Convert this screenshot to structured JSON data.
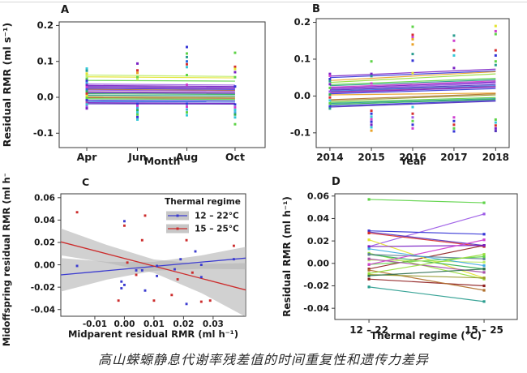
{
  "caption": "高山蝾螈静息代谢率残差值的时间重复性和遗传力差异",
  "palette": [
    "#7a1fc4",
    "#9b59e6",
    "#5533bb",
    "#3434d6",
    "#2b6be0",
    "#3fa9e0",
    "#35c8d8",
    "#2a9d8f",
    "#2fae54",
    "#5ed348",
    "#96dd3c",
    "#c0ee6a",
    "#e3e32e",
    "#eaa226",
    "#b06f2c",
    "#98982c",
    "#d62f2f",
    "#8f1f1f",
    "#cf3ecf",
    "#a84fa8",
    "#5f7f93",
    "#2f6f4f"
  ],
  "colors": {
    "axis": "#3a3a3a",
    "band": "#b5b5b5",
    "legend_sample_bg": "#c7c7c7",
    "blue": "#3b3bd0",
    "red": "#cc2b2b"
  },
  "chart_data": [
    {
      "id": "A",
      "label": "A",
      "type": "trajectories",
      "x_categories": [
        "Apr",
        "Jun",
        "Aug",
        "Oct"
      ],
      "xlabel": "Month",
      "ylabel": "Residual RMR (ml s⁻¹)",
      "ytick_values": [
        0.2,
        0.1,
        0.0,
        -0.1
      ],
      "ytick_labels": [
        "0.2",
        "0.1",
        "0.0",
        "-0.1"
      ],
      "ylim": [
        -0.14,
        0.21
      ],
      "endpoint_markers": false,
      "lines": [
        [
          0.062,
          0.058,
          11
        ],
        [
          0.057,
          0.054,
          12
        ],
        [
          0.047,
          0.045,
          9
        ],
        [
          0.037,
          0.034,
          1
        ],
        [
          0.033,
          0.03,
          0
        ],
        [
          0.03,
          0.027,
          2
        ],
        [
          0.027,
          0.024,
          18
        ],
        [
          0.025,
          0.022,
          3
        ],
        [
          0.022,
          0.019,
          14
        ],
        [
          0.02,
          0.017,
          1
        ],
        [
          0.016,
          0.013,
          19
        ],
        [
          0.013,
          0.011,
          2
        ],
        [
          0.01,
          0.008,
          8
        ],
        [
          0.006,
          0.004,
          7
        ],
        [
          0.002,
          0.0,
          15
        ],
        [
          -0.001,
          -0.003,
          14
        ],
        [
          -0.004,
          -0.006,
          9
        ],
        [
          -0.008,
          -0.01,
          3
        ],
        [
          -0.012,
          -0.013,
          4
        ],
        [
          -0.015,
          -0.017,
          0
        ],
        [
          -0.018,
          -0.019,
          2
        ]
      ],
      "points": [
        [
          0,
          0.08,
          6
        ],
        [
          0,
          0.074,
          7
        ],
        [
          0,
          0.066,
          12
        ],
        [
          0,
          0.06,
          11
        ],
        [
          0,
          0.052,
          9
        ],
        [
          0,
          0.046,
          3
        ],
        [
          0,
          0.04,
          5
        ],
        [
          0,
          0.034,
          0
        ],
        [
          0,
          0.028,
          18
        ],
        [
          0,
          0.022,
          4
        ],
        [
          0,
          0.016,
          8
        ],
        [
          0,
          0.01,
          16
        ],
        [
          0,
          0.004,
          12
        ],
        [
          0,
          -0.002,
          9
        ],
        [
          0,
          -0.008,
          3
        ],
        [
          0,
          -0.014,
          19
        ],
        [
          0,
          -0.02,
          6
        ],
        [
          0,
          -0.026,
          1
        ],
        [
          0,
          -0.031,
          0
        ],
        [
          1,
          0.094,
          0
        ],
        [
          1,
          0.075,
          16
        ],
        [
          1,
          0.068,
          13
        ],
        [
          1,
          0.056,
          9
        ],
        [
          1,
          0.05,
          11
        ],
        [
          1,
          -0.018,
          3
        ],
        [
          1,
          -0.024,
          18
        ],
        [
          1,
          -0.03,
          5
        ],
        [
          1,
          -0.036,
          8
        ],
        [
          1,
          -0.042,
          6
        ],
        [
          1,
          -0.048,
          9
        ],
        [
          1,
          -0.055,
          3
        ],
        [
          1,
          -0.062,
          6
        ],
        [
          2,
          0.14,
          3
        ],
        [
          2,
          0.122,
          9
        ],
        [
          2,
          0.112,
          7
        ],
        [
          2,
          0.1,
          4
        ],
        [
          2,
          0.092,
          16
        ],
        [
          2,
          0.084,
          6
        ],
        [
          2,
          0.062,
          9
        ],
        [
          2,
          0.035,
          18
        ],
        [
          2,
          -0.018,
          3
        ],
        [
          2,
          -0.026,
          18
        ],
        [
          2,
          -0.034,
          5
        ],
        [
          2,
          -0.042,
          9
        ],
        [
          2,
          -0.05,
          6
        ],
        [
          3,
          0.124,
          9
        ],
        [
          3,
          0.085,
          16
        ],
        [
          3,
          0.079,
          12
        ],
        [
          3,
          0.07,
          0
        ],
        [
          3,
          0.056,
          9
        ],
        [
          3,
          0.03,
          3
        ],
        [
          3,
          -0.02,
          3
        ],
        [
          3,
          -0.028,
          18
        ],
        [
          3,
          -0.035,
          6
        ],
        [
          3,
          -0.042,
          5
        ],
        [
          3,
          -0.048,
          8
        ],
        [
          3,
          -0.056,
          6
        ],
        [
          3,
          -0.075,
          9
        ]
      ]
    },
    {
      "id": "B",
      "label": "B",
      "type": "trajectories",
      "x_categories": [
        "2014",
        "2015",
        "2016",
        "2017",
        "2018"
      ],
      "xlabel": "Year",
      "ylabel": "",
      "ytick_values": [
        0.2,
        0.1,
        0.0,
        -0.1
      ],
      "ytick_labels": [
        "0.2",
        "0.1",
        "0.0",
        "-0.1"
      ],
      "ylim": [
        -0.14,
        0.21
      ],
      "endpoint_markers": false,
      "lines": [
        [
          0.054,
          0.073,
          0
        ],
        [
          0.05,
          0.068,
          3
        ],
        [
          0.042,
          0.066,
          13
        ],
        [
          0.037,
          0.06,
          10
        ],
        [
          0.031,
          0.048,
          9
        ],
        [
          0.028,
          0.044,
          7
        ],
        [
          0.024,
          0.041,
          18
        ],
        [
          0.021,
          0.038,
          0
        ],
        [
          0.018,
          0.035,
          1
        ],
        [
          0.016,
          0.031,
          2
        ],
        [
          0.013,
          0.028,
          4
        ],
        [
          0.011,
          0.026,
          19
        ],
        [
          0.009,
          0.024,
          0
        ],
        [
          0.006,
          0.02,
          3
        ],
        [
          0.003,
          0.008,
          13
        ],
        [
          -0.01,
          0.006,
          14
        ],
        [
          -0.013,
          0.003,
          15
        ],
        [
          -0.017,
          -0.004,
          9
        ],
        [
          -0.02,
          -0.007,
          7
        ],
        [
          -0.023,
          -0.009,
          8
        ],
        [
          -0.027,
          -0.012,
          3
        ],
        [
          -0.03,
          -0.014,
          2
        ]
      ],
      "points": [
        [
          0,
          0.06,
          0
        ],
        [
          0,
          0.055,
          18
        ],
        [
          0,
          0.046,
          3
        ],
        [
          0,
          0.04,
          7
        ],
        [
          0,
          0.032,
          0
        ],
        [
          0,
          0.022,
          9
        ],
        [
          0,
          0.012,
          1
        ],
        [
          0,
          0.004,
          8
        ],
        [
          0,
          -0.004,
          16
        ],
        [
          0,
          -0.012,
          6
        ],
        [
          0,
          -0.02,
          9
        ],
        [
          0,
          -0.028,
          3
        ],
        [
          0,
          -0.034,
          7
        ],
        [
          1,
          0.094,
          9
        ],
        [
          1,
          0.06,
          0
        ],
        [
          1,
          0.054,
          7
        ],
        [
          1,
          0.034,
          18
        ],
        [
          1,
          -0.04,
          16
        ],
        [
          1,
          -0.048,
          3
        ],
        [
          1,
          -0.056,
          6
        ],
        [
          1,
          -0.063,
          18
        ],
        [
          1,
          -0.07,
          3
        ],
        [
          1,
          -0.078,
          0
        ],
        [
          1,
          -0.085,
          6
        ],
        [
          1,
          -0.094,
          13
        ],
        [
          2,
          0.188,
          9
        ],
        [
          2,
          0.166,
          16
        ],
        [
          2,
          0.16,
          18
        ],
        [
          2,
          0.154,
          13
        ],
        [
          2,
          0.14,
          13
        ],
        [
          2,
          0.114,
          7
        ],
        [
          2,
          0.096,
          3
        ],
        [
          2,
          0.062,
          12
        ],
        [
          2,
          -0.03,
          6
        ],
        [
          2,
          -0.048,
          16
        ],
        [
          2,
          -0.058,
          1
        ],
        [
          2,
          -0.068,
          9
        ],
        [
          2,
          -0.078,
          3
        ],
        [
          2,
          -0.088,
          18
        ],
        [
          3,
          0.164,
          7
        ],
        [
          3,
          0.15,
          18
        ],
        [
          3,
          0.124,
          16
        ],
        [
          3,
          0.11,
          6
        ],
        [
          3,
          0.076,
          0
        ],
        [
          3,
          -0.058,
          18
        ],
        [
          3,
          -0.068,
          3
        ],
        [
          3,
          -0.078,
          16
        ],
        [
          3,
          -0.088,
          9
        ],
        [
          3,
          -0.096,
          3
        ],
        [
          4,
          0.19,
          12
        ],
        [
          4,
          0.176,
          18
        ],
        [
          4,
          0.168,
          9
        ],
        [
          4,
          0.124,
          16
        ],
        [
          4,
          0.11,
          3
        ],
        [
          4,
          0.094,
          9
        ],
        [
          4,
          0.084,
          7
        ],
        [
          4,
          -0.064,
          9
        ],
        [
          4,
          -0.072,
          6
        ],
        [
          4,
          -0.08,
          16
        ],
        [
          4,
          -0.088,
          0
        ],
        [
          4,
          -0.095,
          2
        ]
      ]
    },
    {
      "id": "C",
      "label": "C",
      "type": "scatter_regression",
      "xlabel": "Midparent residual RMR (ml h⁻¹)",
      "ylabel": "Midoffspring residual RMR (ml h⁻¹)",
      "xtick_values": [
        -0.01,
        0.0,
        0.01,
        0.02,
        0.03
      ],
      "xtick_labels": [
        "-0.01",
        "0.00",
        "0.01",
        "0.02",
        "0.03"
      ],
      "xlim": [
        -0.0215,
        0.041
      ],
      "ytick_values": [
        0.06,
        0.04,
        0.02,
        0.0,
        -0.02,
        -0.04
      ],
      "ytick_labels": [
        "0.06",
        "0.04",
        "0.02",
        "0.00",
        "-0.02",
        "-0.04"
      ],
      "ylim": [
        -0.046,
        0.0635
      ],
      "legend": {
        "title": "Thermal regime",
        "entries": [
          {
            "label": "12 – 22°C",
            "color": "#3b3bd0"
          },
          {
            "label": "15 – 25°C",
            "color": "#cc2b2b"
          }
        ]
      },
      "series": [
        {
          "name": "12 – 22°C",
          "color": "#3b3bd0",
          "line": [
            [
              -0.0215,
              -0.009
            ],
            [
              0.041,
              0.006
            ]
          ],
          "band": [
            [
              -0.0215,
              0.006
            ],
            [
              -0.006,
              0.0027
            ],
            [
              0.01,
              0.0026
            ],
            [
              0.026,
              0.0084
            ],
            [
              0.041,
              0.016
            ],
            [
              0.041,
              -0.004
            ],
            [
              0.026,
              -0.0036
            ],
            [
              0.01,
              -0.0054
            ],
            [
              -0.006,
              -0.0133
            ],
            [
              -0.0215,
              -0.024
            ]
          ],
          "points": [
            [
              -0.016,
              -0.001
            ],
            [
              0.0,
              0.039
            ],
            [
              -0.001,
              -0.015
            ],
            [
              0.0,
              -0.018
            ],
            [
              -0.001,
              -0.021
            ],
            [
              0.004,
              -0.005
            ],
            [
              0.006,
              -0.005
            ],
            [
              0.007,
              -0.023
            ],
            [
              0.011,
              -0.01
            ],
            [
              0.011,
              -0.001
            ],
            [
              0.017,
              -0.004
            ],
            [
              0.019,
              0.005
            ],
            [
              0.024,
              0.012
            ],
            [
              0.026,
              -0.011
            ],
            [
              0.021,
              -0.035
            ],
            [
              0.026,
              0.0
            ],
            [
              0.037,
              0.005
            ]
          ]
        },
        {
          "name": "15 – 25°C",
          "color": "#cc2b2b",
          "line": [
            [
              -0.0215,
              0.0205
            ],
            [
              0.041,
              -0.0225
            ]
          ],
          "band": [
            [
              -0.0215,
              0.0325
            ],
            [
              -0.006,
              0.0178
            ],
            [
              0.01,
              0.0048
            ],
            [
              0.026,
              0.0008
            ],
            [
              0.041,
              0.0015
            ],
            [
              0.041,
              -0.0465
            ],
            [
              0.026,
              -0.0252
            ],
            [
              0.01,
              -0.0072
            ],
            [
              -0.006,
              0.0018
            ],
            [
              -0.0215,
              0.0085
            ]
          ],
          "points": [
            [
              -0.016,
              0.047
            ],
            [
              0.0,
              0.035
            ],
            [
              -0.002,
              -0.032
            ],
            [
              0.007,
              0.044
            ],
            [
              0.006,
              0.022
            ],
            [
              0.001,
              0.002
            ],
            [
              0.004,
              -0.009
            ],
            [
              0.01,
              -0.032
            ],
            [
              0.016,
              -0.027
            ],
            [
              0.021,
              0.022
            ],
            [
              0.023,
              -0.007
            ],
            [
              0.026,
              -0.033
            ],
            [
              0.029,
              -0.032
            ],
            [
              0.037,
              0.017
            ],
            [
              0.018,
              -0.013
            ]
          ]
        }
      ]
    },
    {
      "id": "D",
      "label": "D",
      "type": "trajectories",
      "x_categories": [
        "12 – 22",
        "15 – 25"
      ],
      "xlabel": "Thermal regime (°C)",
      "ylabel": "Residual RMR (ml h⁻¹)",
      "ytick_values": [
        0.06,
        0.04,
        0.02,
        0.0,
        -0.02,
        -0.04
      ],
      "ytick_labels": [
        "0.06",
        "0.04",
        "0.02",
        "0.00",
        "-0.02",
        "-0.04"
      ],
      "ylim": [
        -0.05,
        0.062
      ],
      "endpoint_markers": true,
      "lines": [
        [
          0.057,
          0.054,
          9
        ],
        [
          0.015,
          0.044,
          1
        ],
        [
          0.029,
          0.026,
          3
        ],
        [
          0.028,
          0.016,
          2
        ],
        [
          0.027,
          0.015,
          16
        ],
        [
          -0.005,
          0.016,
          17
        ],
        [
          0.021,
          -0.013,
          12
        ],
        [
          0.009,
          -0.014,
          10
        ],
        [
          0.008,
          -0.005,
          8
        ],
        [
          0.008,
          0.004,
          20
        ],
        [
          -0.021,
          -0.034,
          7
        ],
        [
          -0.014,
          -0.02,
          17
        ],
        [
          -0.006,
          -0.024,
          14
        ],
        [
          -0.001,
          0.006,
          9
        ],
        [
          -0.01,
          -0.013,
          15
        ],
        [
          0.003,
          0.001,
          11
        ],
        [
          0.015,
          0.016,
          0
        ],
        [
          0.004,
          -0.008,
          19
        ],
        [
          -0.011,
          -0.005,
          21
        ],
        [
          -0.001,
          0.021,
          18
        ],
        [
          0.013,
          -0.002,
          5
        ],
        [
          -0.009,
          0.008,
          10
        ]
      ],
      "points": []
    }
  ]
}
